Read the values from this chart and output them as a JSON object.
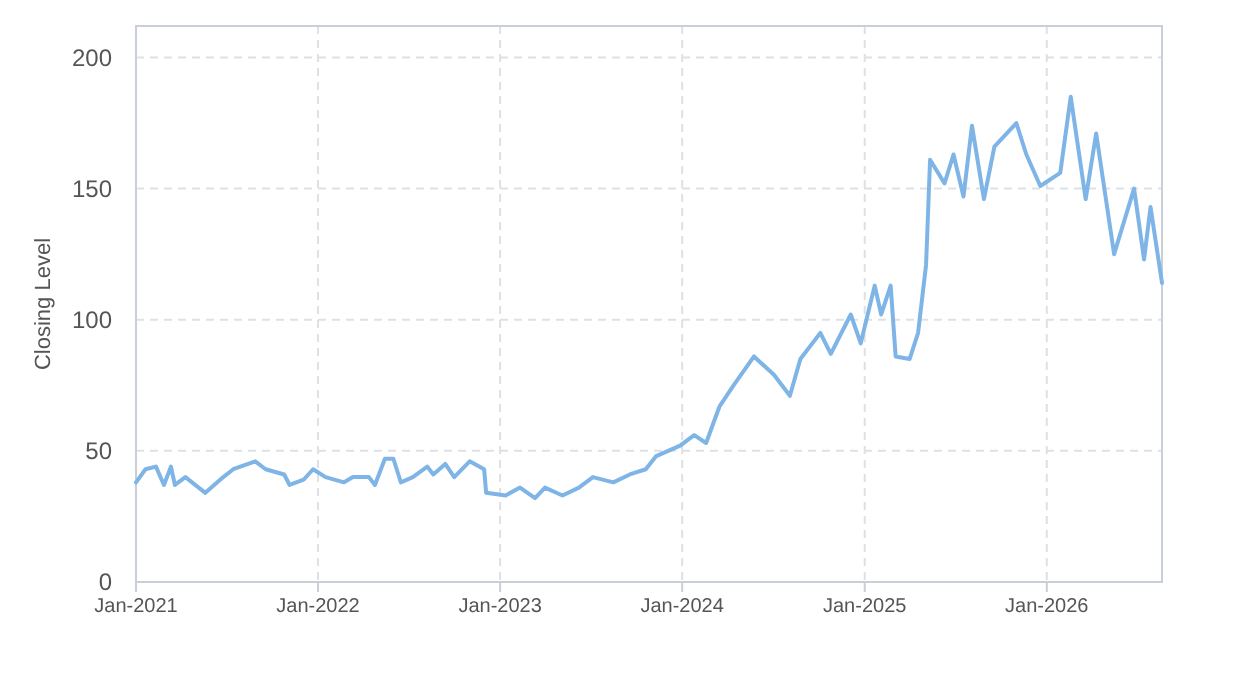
{
  "chart_data": {
    "type": "line",
    "ylabel": "Closing Level",
    "grid": true,
    "marker": "none",
    "line_style": "solid",
    "xlim": [
      "2021-01-01",
      "2026-08-20"
    ],
    "ylim": [
      0,
      212
    ],
    "yticks": [
      0,
      50,
      100,
      150,
      200
    ],
    "xticks": [
      {
        "value": "2021-01-01",
        "label": "Jan-2021"
      },
      {
        "value": "2022-01-01",
        "label": "Jan-2022"
      },
      {
        "value": "2023-01-01",
        "label": "Jan-2023"
      },
      {
        "value": "2024-01-01",
        "label": "Jan-2024"
      },
      {
        "value": "2025-01-01",
        "label": "Jan-2025"
      },
      {
        "value": "2026-01-01",
        "label": "Jan-2026"
      }
    ],
    "x": [
      "2021-01-01",
      "2021-01-20",
      "2021-02-10",
      "2021-02-26",
      "2021-03-12",
      "2021-03-20",
      "2021-04-10",
      "2021-05-20",
      "2021-06-25",
      "2021-07-15",
      "2021-08-28",
      "2021-09-18",
      "2021-10-25",
      "2021-11-05",
      "2021-12-03",
      "2021-12-22",
      "2022-01-16",
      "2022-02-22",
      "2022-03-12",
      "2022-04-13",
      "2022-04-25",
      "2022-05-15",
      "2022-06-01",
      "2022-06-16",
      "2022-07-10",
      "2022-08-08",
      "2022-08-20",
      "2022-09-13",
      "2022-10-01",
      "2022-11-01",
      "2022-11-30",
      "2022-12-04",
      "2023-01-12",
      "2023-02-10",
      "2023-03-12",
      "2023-04-01",
      "2023-05-06",
      "2023-06-08",
      "2023-07-06",
      "2023-08-16",
      "2023-09-18",
      "2023-10-20",
      "2023-11-10",
      "2023-12-28",
      "2024-01-25",
      "2024-02-18",
      "2024-03-16",
      "2024-04-13",
      "2024-05-24",
      "2024-07-03",
      "2024-08-04",
      "2024-08-25",
      "2024-10-04",
      "2024-10-25",
      "2024-12-04",
      "2024-12-24",
      "2025-01-21",
      "2025-02-03",
      "2025-02-22",
      "2025-03-04",
      "2025-04-01",
      "2025-04-18",
      "2025-05-04",
      "2025-05-12",
      "2025-06-10",
      "2025-06-28",
      "2025-07-18",
      "2025-08-04",
      "2025-08-28",
      "2025-09-18",
      "2025-11-01",
      "2025-11-21",
      "2025-12-19",
      "2026-01-28",
      "2026-02-18",
      "2026-03-20",
      "2026-04-10",
      "2026-05-16",
      "2026-06-25",
      "2026-07-15",
      "2026-07-28",
      "2026-08-20"
    ],
    "series": [
      {
        "color": "#7eb5e6",
        "values": [
          38,
          43,
          44,
          37,
          44,
          37,
          40,
          34,
          40,
          43,
          46,
          43,
          41,
          37,
          39,
          43,
          40,
          38,
          40,
          40,
          37,
          47,
          47,
          38,
          40,
          44,
          41,
          45,
          40,
          46,
          43,
          34,
          33,
          36,
          32,
          36,
          33,
          36,
          40,
          38,
          41,
          43,
          48,
          52,
          56,
          53,
          67,
          75,
          86,
          79,
          71,
          85,
          95,
          87,
          102,
          91,
          113,
          102,
          113,
          86,
          85,
          95,
          121,
          161,
          152,
          163,
          147,
          174,
          146,
          166,
          175,
          163,
          151,
          156,
          185,
          146,
          171,
          125,
          150,
          123,
          143,
          114
        ]
      }
    ]
  }
}
